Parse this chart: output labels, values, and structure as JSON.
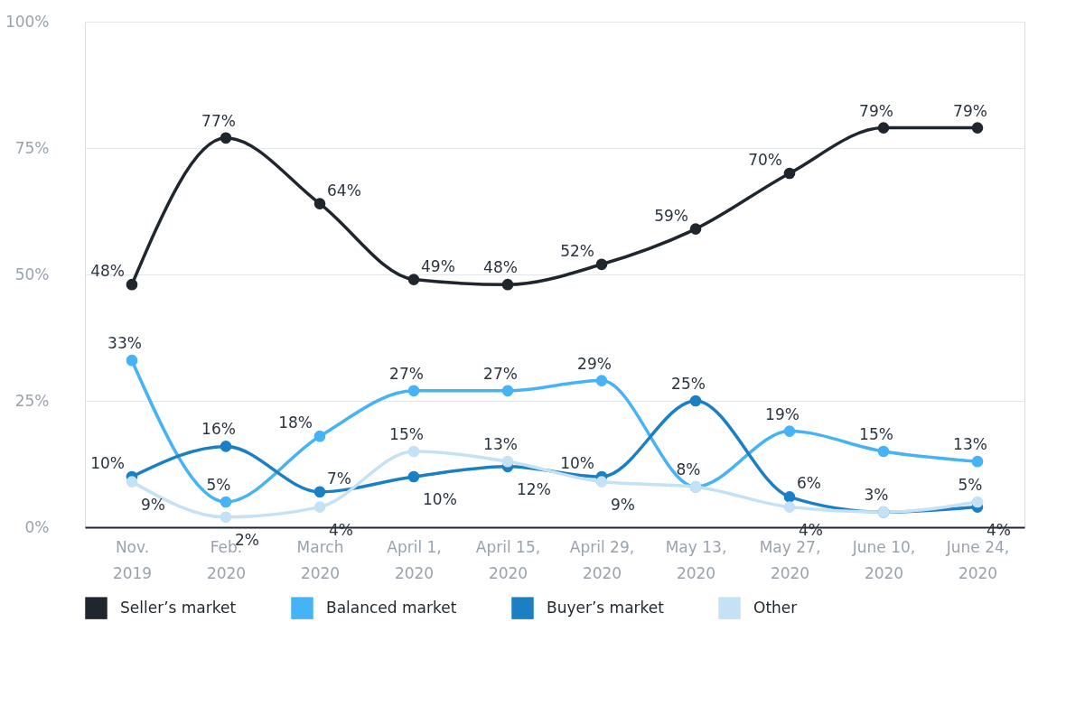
{
  "chart_data": {
    "type": "line",
    "categories": [
      "Nov. 2019",
      "Feb. 2020",
      "March 2020",
      "April 1, 2020",
      "April 15, 2020",
      "April 29, 2020",
      "May 13, 2020",
      "May 27, 2020",
      "June 10, 2020",
      "June 24, 2020"
    ],
    "series": [
      {
        "name": "Seller’s market",
        "color": "#1f262e",
        "values": [
          48,
          77,
          64,
          49,
          48,
          52,
          59,
          70,
          79,
          79
        ],
        "value_labels": [
          "48%",
          "77%",
          "64%",
          "49%",
          "48%",
          "52%",
          "59%",
          "70%",
          "79%",
          "79%"
        ]
      },
      {
        "name": "Balanced market",
        "color": "#45b3f5",
        "values": [
          33,
          5,
          18,
          27,
          27,
          29,
          8,
          19,
          15,
          13
        ],
        "value_labels": [
          "33%",
          "5%",
          "18%",
          "27%",
          "27%",
          "29%",
          "8%",
          "19%",
          "15%",
          "13%"
        ]
      },
      {
        "name": "Buyer’s market",
        "color": "#1b7fc4",
        "values": [
          10,
          16,
          7,
          10,
          12,
          10,
          25,
          6,
          3,
          4
        ],
        "value_labels": [
          "10%",
          "16%",
          "7%",
          "10%",
          "12%",
          "10%",
          "25%",
          "6%",
          "3%",
          "4%"
        ]
      },
      {
        "name": "Other",
        "color": "#c4e1f5",
        "values": [
          9,
          2,
          4,
          15,
          13,
          9,
          8,
          4,
          3,
          5
        ],
        "value_labels": [
          "9%",
          "2%",
          "4%",
          "15%",
          "13%",
          "9%",
          null,
          "4%",
          null,
          "5%"
        ]
      }
    ],
    "ylim": [
      0,
      100
    ],
    "yticks": [
      {
        "value": 0,
        "label": "0%"
      },
      {
        "value": 25,
        "label": "25%"
      },
      {
        "value": 50,
        "label": "50%"
      },
      {
        "value": 75,
        "label": "75%"
      },
      {
        "value": 100,
        "label": "100%"
      }
    ],
    "grid": "y",
    "legend": "bottom",
    "marker": "circle",
    "line_style": "solid"
  }
}
